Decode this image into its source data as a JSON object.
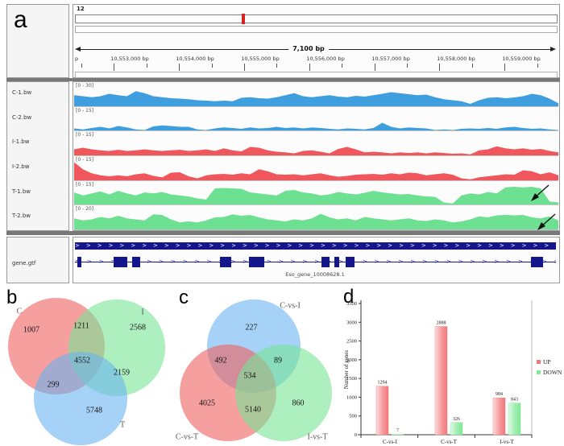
{
  "figure": {
    "panels": {
      "a": "a",
      "b": "b",
      "c": "c",
      "d": "d"
    }
  },
  "igv": {
    "chromosome_label": "12",
    "span_label": "7,100 bp",
    "ruler_labels": [
      "p",
      "10,553,000 bp",
      "10,554,000 bp",
      "10,555,000 bp",
      "10,556,000 bp",
      "10,557,000 bp",
      "10,558,000 bp",
      "10,559,000 bp"
    ],
    "tracks": [
      {
        "name": "C-1.bw",
        "range": "[0 - 30]",
        "color": "#3f9ede",
        "values": [
          0.55,
          0.5,
          0.45,
          0.5,
          0.62,
          0.55,
          0.5,
          0.75,
          0.65,
          0.5,
          0.45,
          0.4,
          0.38,
          0.35,
          0.3,
          0.28,
          0.25,
          0.28,
          0.25,
          0.42,
          0.45,
          0.4,
          0.38,
          0.45,
          0.55,
          0.65,
          0.5,
          0.45,
          0.5,
          0.55,
          0.48,
          0.45,
          0.52,
          0.48,
          0.55,
          0.62,
          0.7,
          0.65,
          0.6,
          0.55,
          0.58,
          0.45,
          0.35,
          0.3,
          0.25,
          0.12,
          0.3,
          0.42,
          0.45,
          0.4,
          0.44,
          0.5,
          0.62,
          0.55,
          0.38,
          0.15
        ]
      },
      {
        "name": "C-2.bw",
        "range": "[0 - 15]",
        "color": "#3f9ede",
        "values": [
          0.1,
          0.05,
          0.12,
          0.18,
          0.1,
          0.22,
          0.15,
          0.05,
          0.02,
          0.2,
          0.25,
          0.22,
          0.18,
          0.18,
          0.05,
          0.02,
          0.1,
          0.15,
          0.12,
          0.08,
          0.15,
          0.1,
          0.12,
          0.18,
          0.12,
          0.15,
          0.1,
          0.15,
          0.12,
          0.08,
          0.05,
          0.1,
          0.08,
          0.05,
          0.12,
          0.38,
          0.18,
          0.1,
          0.15,
          0.12,
          0.1,
          0.02,
          0.05,
          0.02,
          0.08,
          0.1,
          0.08,
          0.12,
          0.08,
          0.15,
          0.18,
          0.12,
          0.08,
          0.1,
          0.05,
          0.02
        ]
      },
      {
        "name": "I-1.bw",
        "range": "[0 - 15]",
        "color": "#f0575c",
        "values": [
          0.3,
          0.38,
          0.3,
          0.25,
          0.22,
          0.28,
          0.22,
          0.25,
          0.3,
          0.25,
          0.22,
          0.25,
          0.28,
          0.22,
          0.25,
          0.3,
          0.22,
          0.35,
          0.25,
          0.2,
          0.42,
          0.38,
          0.25,
          0.18,
          0.15,
          0.1,
          0.22,
          0.25,
          0.18,
          0.1,
          0.32,
          0.42,
          0.3,
          0.15,
          0.18,
          0.15,
          0.1,
          0.15,
          0.12,
          0.15,
          0.1,
          0.15,
          0.12,
          0.08,
          0.1,
          0.05,
          0.25,
          0.3,
          0.45,
          0.35,
          0.3,
          0.35,
          0.28,
          0.32,
          0.22,
          0.15
        ]
      },
      {
        "name": "I-2.bw",
        "range": "[0 - 15]",
        "color": "#f0575c",
        "values": [
          0.9,
          0.55,
          0.35,
          0.25,
          0.2,
          0.25,
          0.2,
          0.3,
          0.35,
          0.22,
          0.15,
          0.38,
          0.4,
          0.2,
          0.1,
          0.25,
          0.3,
          0.32,
          0.28,
          0.35,
          0.3,
          0.55,
          0.45,
          0.3,
          0.28,
          0.3,
          0.25,
          0.3,
          0.35,
          0.25,
          0.18,
          0.22,
          0.28,
          0.3,
          0.32,
          0.28,
          0.35,
          0.3,
          0.38,
          0.35,
          0.25,
          0.3,
          0.35,
          0.28,
          0.1,
          0.05,
          0.15,
          0.2,
          0.25,
          0.3,
          0.28,
          0.5,
          0.45,
          0.3,
          0.4,
          0.25
        ]
      },
      {
        "name": "T-1.bw",
        "range": "[0 - 15]",
        "color": "#6ee091",
        "values": [
          0.6,
          0.45,
          0.55,
          0.65,
          0.5,
          0.68,
          0.55,
          0.45,
          0.6,
          0.55,
          0.62,
          0.5,
          0.45,
          0.4,
          0.3,
          0.25,
          0.8,
          0.82,
          0.8,
          0.78,
          0.6,
          0.55,
          0.5,
          0.45,
          0.68,
          0.72,
          0.6,
          0.55,
          0.45,
          0.5,
          0.62,
          0.55,
          0.5,
          0.58,
          0.68,
          0.6,
          0.55,
          0.5,
          0.52,
          0.45,
          0.4,
          0.38,
          0.1,
          0.05,
          0.45,
          0.55,
          0.5,
          0.62,
          0.55,
          0.85,
          0.88,
          0.85,
          0.88,
          0.8,
          0.15,
          0.1
        ]
      },
      {
        "name": "T-2.bw",
        "range": "[0 - 20]",
        "color": "#6ee091",
        "values": [
          0.55,
          0.45,
          0.5,
          0.62,
          0.55,
          0.68,
          0.55,
          0.5,
          0.45,
          0.75,
          0.72,
          0.5,
          0.35,
          0.4,
          0.35,
          0.45,
          0.6,
          0.62,
          0.75,
          0.68,
          0.72,
          0.6,
          0.5,
          0.45,
          0.4,
          0.5,
          0.45,
          0.55,
          0.78,
          0.6,
          0.5,
          0.55,
          0.45,
          0.62,
          0.55,
          0.5,
          0.45,
          0.5,
          0.55,
          0.45,
          0.42,
          0.5,
          0.45,
          0.35,
          0.4,
          0.5,
          0.65,
          0.6,
          0.7,
          0.72,
          0.7,
          0.72,
          0.6,
          0.55,
          0.65,
          0.45
        ]
      }
    ],
    "gene_track": {
      "label": "gene.gtf",
      "gene_name": "Eso_gene_10008628.1",
      "color": "#16168c",
      "exons": [
        [
          3,
          5
        ],
        [
          48,
          17
        ],
        [
          71,
          10
        ],
        [
          180,
          14
        ],
        [
          216,
          19
        ],
        [
          306,
          10
        ],
        [
          322,
          6
        ],
        [
          336,
          11
        ],
        [
          566,
          15
        ]
      ]
    }
  },
  "chart_data": [
    {
      "type": "venn",
      "panel": "b",
      "sets": [
        "C",
        "I",
        "T"
      ],
      "set_colors": {
        "C": "#f08a8a",
        "I": "#98e8a6",
        "T": "#8cc8f0"
      },
      "region_values": {
        "c_only": 1007,
        "i_only": 2568,
        "t_only": 5748,
        "c_i": 1211,
        "c_t": 299,
        "i_t": 2159,
        "c_i_t": 4552
      }
    },
    {
      "type": "venn",
      "panel": "c",
      "sets": [
        "C-vs-I",
        "C-vs-T",
        "I-vs-T"
      ],
      "set_colors": {
        "C-vs-I": "#8cc8f0",
        "C-vs-T": "#f08a8a",
        "I-vs-T": "#98e8a6"
      },
      "region_values": {
        "cvi_only": 227,
        "cvt_only": 4025,
        "ivt_only": 860,
        "cvi_cvt": 492,
        "cvi_ivt": 89,
        "cvt_ivt": 5140,
        "all_three": 534
      }
    },
    {
      "type": "bar",
      "panel": "d",
      "categories": [
        "C-vs-I",
        "C-vs-T",
        "I-vs-T"
      ],
      "series": [
        {
          "name": "UP",
          "color": "#f2777b",
          "values": [
            1294,
            2888,
            984
          ]
        },
        {
          "name": "DOWN",
          "color": "#80e896",
          "values": [
            7,
            326,
            843
          ]
        }
      ],
      "ylabel": "Number of genes",
      "ylim": [
        0,
        3500
      ],
      "ytick_step": 500,
      "legend_position": "right",
      "grid": false
    }
  ]
}
